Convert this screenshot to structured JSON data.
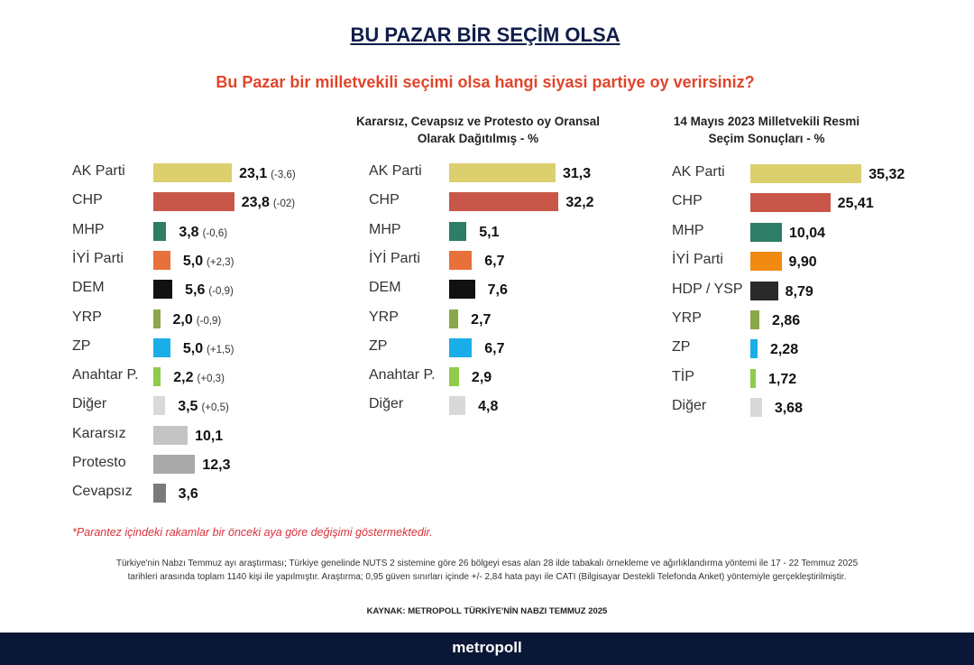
{
  "title": "BU PAZAR BİR SEÇİM OLSA",
  "subtitle": "Bu Pazar bir milletvekili seçimi olsa hangi siyasi partiye oy verirsiniz?",
  "chart_data": [
    {
      "type": "bar",
      "orientation": "horizontal",
      "title": "",
      "categories": [
        "AK Parti",
        "CHP",
        "MHP",
        "İYİ Parti",
        "DEM",
        "YRP",
        "ZP",
        "Anahtar P.",
        "Diğer",
        "Kararsız",
        "Protesto",
        "Cevapsız"
      ],
      "values": [
        23.1,
        23.8,
        3.8,
        5.0,
        5.6,
        2.0,
        5.0,
        2.2,
        3.5,
        10.1,
        12.3,
        3.6
      ],
      "value_labels": [
        "23,1",
        "23,8",
        "3,8",
        "5,0",
        "5,6",
        "2,0",
        "5,0",
        "2,2",
        "3,5",
        "10,1",
        "12,3",
        "3,6"
      ],
      "changes": [
        "(-3,6)",
        "(-02)",
        "(-0,6)",
        "(+2,3)",
        "(-0,9)",
        "(-0,9)",
        "(+1,5)",
        "(+0,3)",
        "(+0,5)",
        "",
        "",
        ""
      ],
      "colors": [
        "#dccf6e",
        "#c8574a",
        "#2e7d66",
        "#e8703a",
        "#111111",
        "#8aa84a",
        "#1aaee8",
        "#8fcc4a",
        "#d9d9d9",
        "#c4c4c4",
        "#a9a9a9",
        "#7a7a7a"
      ]
    },
    {
      "type": "bar",
      "orientation": "horizontal",
      "title": "Kararsız, Cevapsız ve Protesto oy Oransal Olarak Dağıtılmış - %",
      "categories": [
        "AK Parti",
        "CHP",
        "MHP",
        "İYİ Parti",
        "DEM",
        "YRP",
        "ZP",
        "Anahtar P.",
        "Diğer"
      ],
      "values": [
        31.3,
        32.2,
        5.1,
        6.7,
        7.6,
        2.7,
        6.7,
        2.9,
        4.8
      ],
      "value_labels": [
        "31,3",
        "32,2",
        "5,1",
        "6,7",
        "7,6",
        "2,7",
        "6,7",
        "2,9",
        "4,8"
      ],
      "colors": [
        "#dccf6e",
        "#c8574a",
        "#2e7d66",
        "#e8703a",
        "#111111",
        "#8aa84a",
        "#1aaee8",
        "#8fcc4a",
        "#d9d9d9"
      ]
    },
    {
      "type": "bar",
      "orientation": "horizontal",
      "title": "14 Mayıs 2023 Milletvekili Resmi Seçim Sonuçları - %",
      "categories": [
        "AK Parti",
        "CHP",
        "MHP",
        "İYİ Parti",
        "HDP / YSP",
        "YRP",
        "ZP",
        "TİP",
        "Diğer"
      ],
      "values": [
        35.32,
        25.41,
        10.04,
        9.9,
        8.79,
        2.86,
        2.28,
        1.72,
        3.68
      ],
      "value_labels": [
        "35,32",
        "25,41",
        "10,04",
        "9,90",
        "8,79",
        "2,86",
        "2,28",
        "1,72",
        "3,68"
      ],
      "colors": [
        "#dccf6e",
        "#c8574a",
        "#2e7d66",
        "#f08a10",
        "#2a2a2a",
        "#8aa84a",
        "#1aaee8",
        "#8fcc4a",
        "#d9d9d9"
      ]
    }
  ],
  "note": "*Parantez içindeki rakamlar bir önceki aya göre değişimi göstermektedir.",
  "methodology_line1": "Türkiye'nin Nabzı Temmuz ayı araştırması; Türkiye genelinde NUTS 2 sistemine göre 26 bölgeyi esas alan 28 ilde tabakalı örnekleme ve ağırlıklandırma yöntemi ile 17 - 22 Temmuz 2025",
  "methodology_line2": "tarihleri arasında toplam 1140 kişi ile yapılmıştır. Araştırma; 0,95 güven sınırları içinde +/- 2,84 hata payı ile CATI (Bilgisayar Destekli Telefonda Anket) yöntemiyle gerçekleştirilmiştir.",
  "source": "KAYNAK: METROPOLL TÜRKİYE'NİN NABZI TEMMUZ 2025",
  "brand": "metropoll"
}
